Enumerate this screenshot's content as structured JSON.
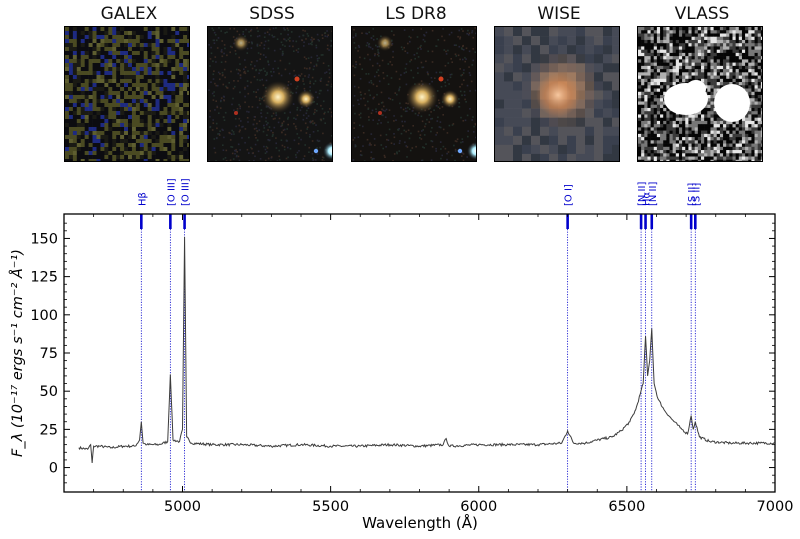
{
  "panels": [
    {
      "title": "GALEX",
      "style": "galex"
    },
    {
      "title": "SDSS",
      "style": "optical"
    },
    {
      "title": "LS DR8",
      "style": "optical2"
    },
    {
      "title": "WISE",
      "style": "wise"
    },
    {
      "title": "VLASS",
      "style": "vlass"
    }
  ],
  "colors": {
    "spectrum": "#3c3c3c",
    "line_marker": "#0000cc",
    "axes": "#000000"
  },
  "chart_data": {
    "type": "line",
    "xlabel": "Wavelength (Å)",
    "ylabel": "F_λ (10⁻¹⁷ ergs s⁻¹ cm⁻² Å⁻¹)",
    "xlim": [
      4600,
      7000
    ],
    "ylim": [
      -16,
      166
    ],
    "xticks": [
      5000,
      5500,
      6000,
      6500,
      7000
    ],
    "yticks": [
      0,
      25,
      50,
      75,
      100,
      125,
      150
    ],
    "grid": false,
    "series": [
      {
        "x": [
          4650,
          4680,
          4690,
          4695,
          4700,
          4720,
          4760,
          4800,
          4840,
          4855,
          4861,
          4867,
          4880,
          4920,
          4950,
          4959,
          4968,
          4990,
          5000,
          5007,
          5014,
          5030,
          5100,
          5200,
          5300,
          5400,
          5500,
          5600,
          5700,
          5800,
          5880,
          5890,
          5900,
          6000,
          6100,
          6200,
          6280,
          6300,
          6320,
          6360,
          6400,
          6450,
          6480,
          6510,
          6530,
          6545,
          6555,
          6563,
          6570,
          6577,
          6584,
          6592,
          6605,
          6625,
          6650,
          6680,
          6705,
          6717,
          6724,
          6731,
          6745,
          6780,
          6850,
          6950,
          7000
        ],
        "y": [
          13,
          12,
          15,
          3,
          14,
          14,
          13,
          14,
          14,
          18,
          30,
          16,
          15,
          15,
          17,
          61,
          18,
          17,
          25,
          151,
          20,
          16,
          15,
          15,
          14,
          15,
          14,
          14,
          15,
          14,
          15,
          19,
          14,
          15,
          15,
          15,
          16,
          24,
          16,
          16,
          18,
          20,
          24,
          30,
          38,
          48,
          55,
          86,
          60,
          70,
          91,
          55,
          45,
          38,
          32,
          26,
          22,
          34,
          25,
          30,
          20,
          17,
          16,
          16,
          16
        ]
      }
    ],
    "emission_lines": [
      {
        "label": "Hβ",
        "wavelength": 4861
      },
      {
        "label": "[O III]",
        "wavelength": 4959
      },
      {
        "label": "[O III]",
        "wavelength": 5007
      },
      {
        "label": "[O I]",
        "wavelength": 6300
      },
      {
        "label": "[N II]",
        "wavelength": 6548
      },
      {
        "label": "Hα",
        "wavelength": 6563
      },
      {
        "label": "[N II]",
        "wavelength": 6584
      },
      {
        "label": "[S II]",
        "wavelength": 6717
      },
      {
        "label": "[S II]",
        "wavelength": 6731
      }
    ]
  }
}
